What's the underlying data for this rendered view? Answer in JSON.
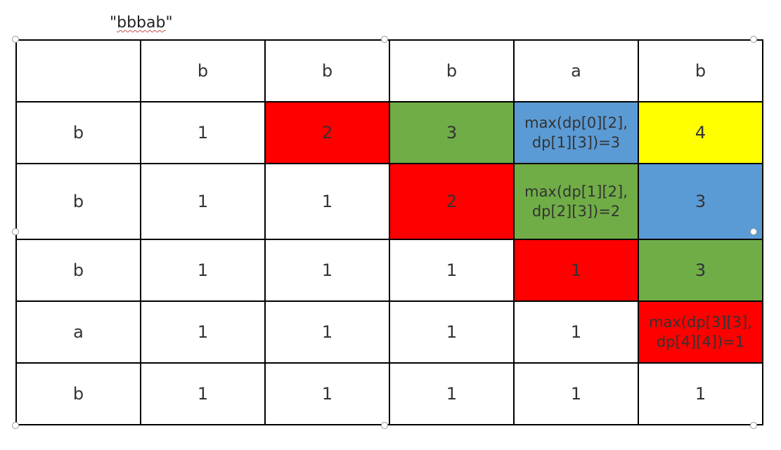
{
  "title": {
    "open": "\"",
    "word": "bbbab",
    "close": "\""
  },
  "colors": {
    "red": "#ff0000",
    "green": "#70ad47",
    "blue": "#5b9bd5",
    "yellow": "#ffff00",
    "white": "#ffffff"
  },
  "table": {
    "header": [
      "",
      "b",
      "b",
      "b",
      "a",
      "b"
    ],
    "rows": [
      [
        {
          "text": "b",
          "color": "white"
        },
        {
          "text": "1",
          "color": "white"
        },
        {
          "text": "2",
          "color": "red"
        },
        {
          "text": "3",
          "color": "green"
        },
        {
          "line1": "max(dp[0][2],",
          "line2": "dp[1][3])=3",
          "color": "blue",
          "formula": true
        },
        {
          "text": "4",
          "color": "yellow"
        }
      ],
      [
        {
          "text": "b",
          "color": "white"
        },
        {
          "text": "1",
          "color": "white"
        },
        {
          "text": "1",
          "color": "white"
        },
        {
          "text": "2",
          "color": "red"
        },
        {
          "line1": "max(dp[1][2],",
          "line2": "dp[2][3])=2",
          "color": "green",
          "formula": true
        },
        {
          "text": "3",
          "color": "blue"
        }
      ],
      [
        {
          "text": "b",
          "color": "white"
        },
        {
          "text": "1",
          "color": "white"
        },
        {
          "text": "1",
          "color": "white"
        },
        {
          "text": "1",
          "color": "white"
        },
        {
          "text": "1",
          "color": "red"
        },
        {
          "text": "3",
          "color": "green"
        }
      ],
      [
        {
          "text": "a",
          "color": "white"
        },
        {
          "text": "1",
          "color": "white"
        },
        {
          "text": "1",
          "color": "white"
        },
        {
          "text": "1",
          "color": "white"
        },
        {
          "text": "1",
          "color": "white"
        },
        {
          "line1": "max(dp[3][3],",
          "line2": "dp[4][4])=1",
          "color": "red",
          "formula": true
        }
      ],
      [
        {
          "text": "b",
          "color": "white"
        },
        {
          "text": "1",
          "color": "white"
        },
        {
          "text": "1",
          "color": "white"
        },
        {
          "text": "1",
          "color": "white"
        },
        {
          "text": "1",
          "color": "white"
        },
        {
          "text": "1",
          "color": "white"
        }
      ]
    ]
  }
}
